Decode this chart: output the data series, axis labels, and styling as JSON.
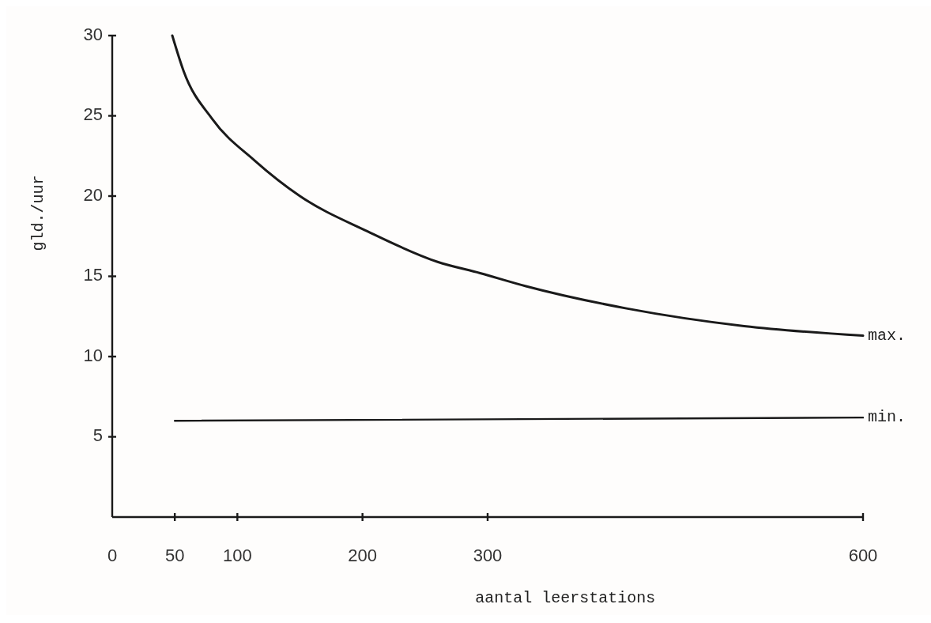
{
  "chart_data": {
    "type": "line",
    "xlabel": "aantal leerstations",
    "ylabel": "gld./uur",
    "xlim": [
      0,
      600
    ],
    "ylim": [
      0,
      30
    ],
    "xticks": [
      0,
      50,
      100,
      200,
      300,
      600
    ],
    "yticks": [
      5,
      10,
      15,
      20,
      25,
      30
    ],
    "grid": false,
    "marker": "none",
    "line_style": "solid",
    "series": [
      {
        "name": "max.",
        "color": "#1a1a1a",
        "x": [
          48,
          57,
          80,
          114,
          150,
          204,
          260,
          294,
          330,
          411,
          505,
          600
        ],
        "values": [
          30.0,
          27.8,
          24.8,
          22.2,
          20.0,
          17.8,
          15.9,
          15.2,
          14.4,
          13.0,
          11.9,
          11.3
        ]
      },
      {
        "name": "min.",
        "color": "#1a1a1a",
        "x": [
          50,
          600
        ],
        "values": [
          6.0,
          6.2
        ]
      }
    ]
  }
}
